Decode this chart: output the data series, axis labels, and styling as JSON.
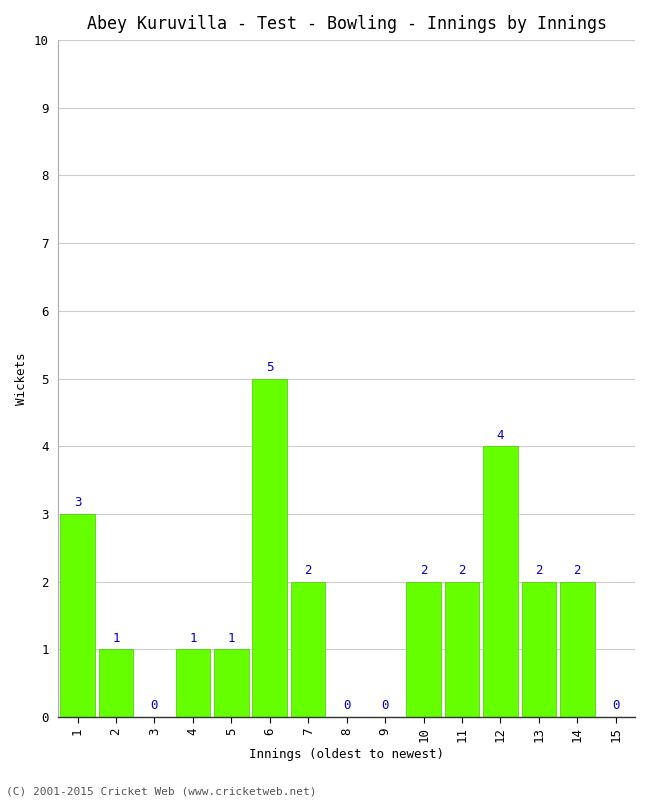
{
  "title": "Abey Kuruvilla - Test - Bowling - Innings by Innings",
  "xlabel": "Innings (oldest to newest)",
  "ylabel": "Wickets",
  "categories": [
    1,
    2,
    3,
    4,
    5,
    6,
    7,
    8,
    9,
    10,
    11,
    12,
    13,
    14,
    15
  ],
  "values": [
    3,
    1,
    0,
    1,
    1,
    5,
    2,
    0,
    0,
    2,
    2,
    4,
    2,
    2,
    0
  ],
  "bar_color": "#66ff00",
  "bar_edge_color": "#44cc00",
  "ylim": [
    0,
    10
  ],
  "yticks": [
    0,
    1,
    2,
    3,
    4,
    5,
    6,
    7,
    8,
    9,
    10
  ],
  "grid_color": "#cccccc",
  "background_color": "#ffffff",
  "title_fontsize": 12,
  "label_fontsize": 9,
  "tick_fontsize": 9,
  "annotation_fontsize": 9,
  "annotation_color": "#0000cc",
  "footer": "(C) 2001-2015 Cricket Web (www.cricketweb.net)"
}
